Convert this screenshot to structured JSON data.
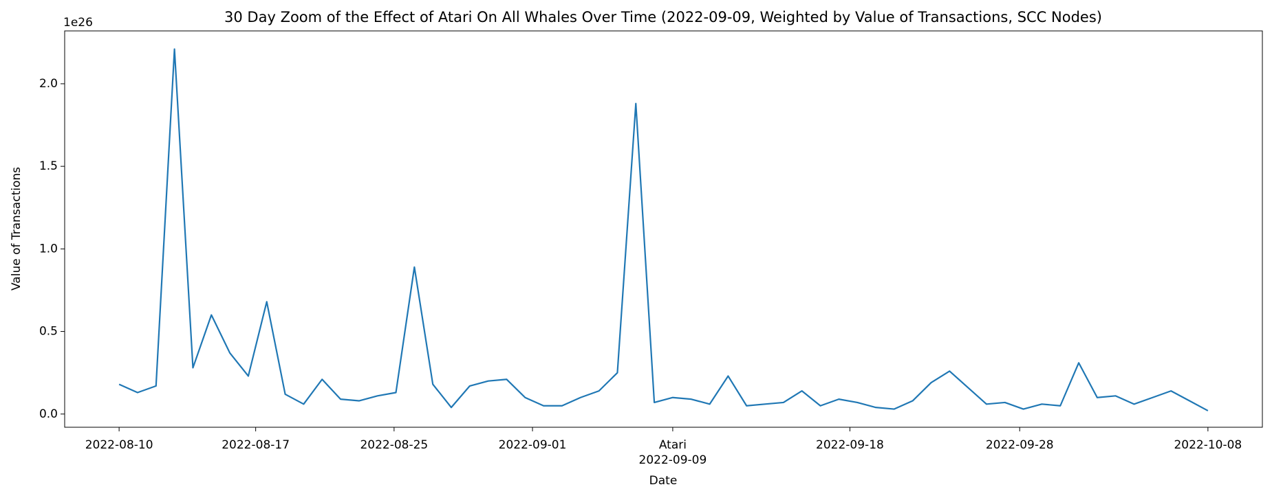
{
  "chart_data": {
    "type": "line",
    "title": "30 Day Zoom of the Effect of Atari On All Whales Over Time (2022-09-09, Weighted by Value of Transactions, SCC Nodes)",
    "xlabel": "Date",
    "ylabel": "Value of Transactions",
    "y_offset_label": "1e26",
    "event_date_label": "2022-09-09",
    "series": [
      {
        "name": "Value of Transactions",
        "color": "#1f77b4",
        "values": [
          0.18,
          0.13,
          0.17,
          2.21,
          0.28,
          0.6,
          0.37,
          0.23,
          0.68,
          0.12,
          0.06,
          0.21,
          0.09,
          0.08,
          0.11,
          0.13,
          0.89,
          0.18,
          0.04,
          0.17,
          0.2,
          0.21,
          0.1,
          0.05,
          0.05,
          0.1,
          0.14,
          0.25,
          1.88,
          0.07,
          0.1,
          0.09,
          0.06,
          0.23,
          0.05,
          0.06,
          0.07,
          0.14,
          0.05,
          0.09,
          0.07,
          0.04,
          0.03,
          0.08,
          0.19,
          0.26,
          0.16,
          0.06,
          0.07,
          0.03,
          0.06,
          0.05,
          0.31,
          0.1,
          0.11,
          0.06,
          0.1,
          0.14,
          0.08,
          0.02
        ]
      }
    ],
    "xlim": [
      -2.95,
      61.95
    ],
    "xticks": [
      {
        "value": 0,
        "label": "2022-08-10"
      },
      {
        "value": 7.4,
        "label": "2022-08-17"
      },
      {
        "value": 14.9,
        "label": "2022-08-25"
      },
      {
        "value": 22.4,
        "label": "2022-09-01"
      },
      {
        "value": 30,
        "label": "Atari"
      },
      {
        "value": 39.6,
        "label": "2022-09-18"
      },
      {
        "value": 48.8,
        "label": "2022-09-28"
      },
      {
        "value": 59,
        "label": "2022-10-08"
      }
    ],
    "ylim": [
      -0.08,
      2.32
    ],
    "yticks": [
      {
        "value": 0,
        "label": "0.0"
      },
      0.5,
      {
        "value": 1,
        "label": "1.0"
      },
      1.5,
      {
        "value": 2,
        "label": "2.0"
      }
    ],
    "grid": false
  }
}
